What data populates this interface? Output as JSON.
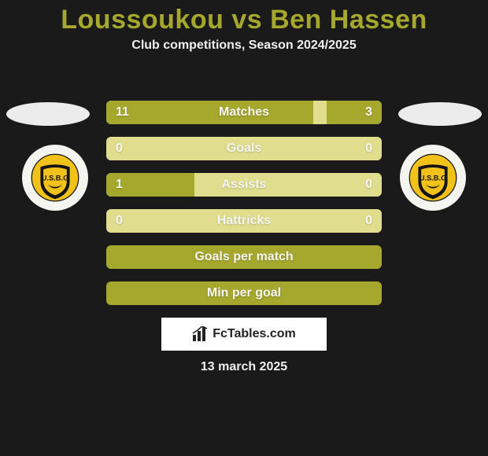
{
  "title": "Loussoukou vs Ben Hassen",
  "subtitle": "Club competitions, Season 2024/2025",
  "date": "13 march 2025",
  "footer_brand": "FcTables.com",
  "colors": {
    "accent": "#a5a82c",
    "bar_light": "#e0de8c",
    "background": "#1a1a1a",
    "text_light": "#f0f0f0",
    "white": "#ffffff",
    "crest_yellow": "#f2c21a",
    "crest_black": "#141414"
  },
  "bars": [
    {
      "label": "Matches",
      "left_val": "11",
      "right_val": "3",
      "left_pct": 75,
      "right_pct": 20,
      "full": false
    },
    {
      "label": "Goals",
      "left_val": "0",
      "right_val": "0",
      "left_pct": 0,
      "right_pct": 0,
      "full": false
    },
    {
      "label": "Assists",
      "left_val": "1",
      "right_val": "0",
      "left_pct": 32,
      "right_pct": 0,
      "full": false
    },
    {
      "label": "Hattricks",
      "left_val": "0",
      "right_val": "0",
      "left_pct": 0,
      "right_pct": 0,
      "full": false
    },
    {
      "label": "Goals per match",
      "left_val": "",
      "right_val": "",
      "left_pct": 0,
      "right_pct": 0,
      "full": true
    },
    {
      "label": "Min per goal",
      "left_val": "",
      "right_val": "",
      "left_pct": 0,
      "right_pct": 0,
      "full": true
    }
  ],
  "crest_text": "U.S.B.G"
}
